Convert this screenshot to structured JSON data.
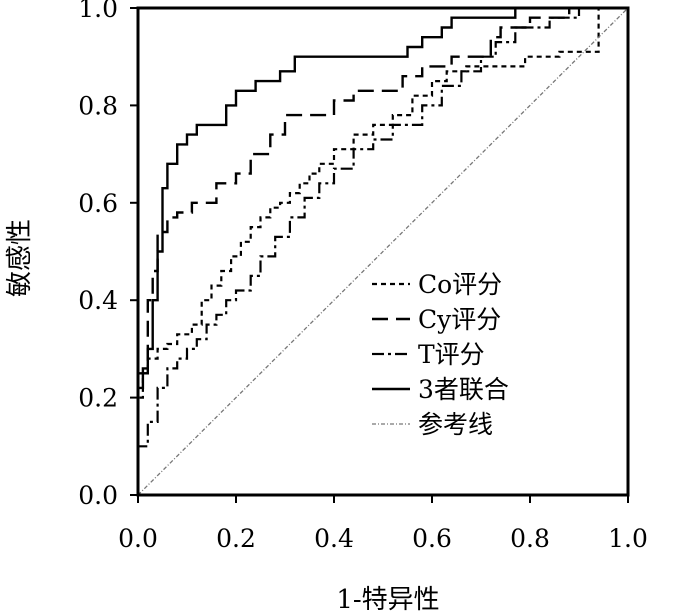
{
  "chart_data": {
    "type": "line",
    "title": "",
    "xlabel": "1-特异性",
    "ylabel": "敏感性",
    "xlim": [
      0,
      1
    ],
    "ylim": [
      0,
      1
    ],
    "x_ticks": [
      "0.0",
      "0.2",
      "0.4",
      "0.6",
      "0.8",
      "1.0"
    ],
    "y_ticks": [
      "0.0",
      "0.2",
      "0.4",
      "0.6",
      "0.8",
      "1.0"
    ],
    "grid": false,
    "legend_position": "bottom-right",
    "series": [
      {
        "name": "Co评分",
        "style": "dotted-dash",
        "x": [
          0,
          0,
          0.01,
          0.01,
          0.02,
          0.02,
          0.04,
          0.04,
          0.06,
          0.06,
          0.08,
          0.08,
          0.11,
          0.11,
          0.13,
          0.13,
          0.15,
          0.15,
          0.17,
          0.17,
          0.19,
          0.19,
          0.21,
          0.21,
          0.23,
          0.23,
          0.25,
          0.25,
          0.27,
          0.27,
          0.29,
          0.29,
          0.31,
          0.31,
          0.33,
          0.33,
          0.35,
          0.35,
          0.37,
          0.37,
          0.4,
          0.4,
          0.44,
          0.44,
          0.48,
          0.48,
          0.52,
          0.52,
          0.56,
          0.56,
          0.6,
          0.6,
          0.63,
          0.63,
          0.67,
          0.67,
          0.71,
          0.71,
          0.79,
          0.79,
          0.86,
          0.86,
          0.94,
          0.94,
          1
        ],
        "y": [
          0,
          0.2,
          0.2,
          0.25,
          0.25,
          0.28,
          0.28,
          0.3,
          0.3,
          0.31,
          0.31,
          0.33,
          0.33,
          0.35,
          0.35,
          0.4,
          0.4,
          0.43,
          0.43,
          0.46,
          0.46,
          0.49,
          0.49,
          0.52,
          0.52,
          0.55,
          0.55,
          0.57,
          0.57,
          0.59,
          0.59,
          0.6,
          0.6,
          0.62,
          0.62,
          0.64,
          0.64,
          0.66,
          0.66,
          0.68,
          0.68,
          0.71,
          0.71,
          0.74,
          0.74,
          0.76,
          0.76,
          0.78,
          0.78,
          0.82,
          0.82,
          0.85,
          0.85,
          0.87,
          0.87,
          0.88,
          0.88,
          0.88,
          0.88,
          0.9,
          0.9,
          0.91,
          0.91,
          1,
          1
        ]
      },
      {
        "name": "Cy评分",
        "style": "dashed",
        "x": [
          0,
          0,
          0.02,
          0.02,
          0.03,
          0.03,
          0.04,
          0.04,
          0.06,
          0.06,
          0.08,
          0.08,
          0.11,
          0.11,
          0.16,
          0.16,
          0.2,
          0.2,
          0.23,
          0.23,
          0.27,
          0.27,
          0.3,
          0.3,
          0.4,
          0.4,
          0.44,
          0.44,
          0.54,
          0.54,
          0.58,
          0.58,
          0.64,
          0.64,
          0.72,
          0.72,
          0.74,
          0.74,
          0.8,
          0.8,
          0.88,
          0.88,
          0.95,
          0.95,
          1
        ],
        "y": [
          0,
          0.25,
          0.25,
          0.4,
          0.4,
          0.46,
          0.46,
          0.54,
          0.54,
          0.57,
          0.57,
          0.58,
          0.58,
          0.6,
          0.6,
          0.64,
          0.64,
          0.66,
          0.66,
          0.7,
          0.7,
          0.74,
          0.74,
          0.78,
          0.78,
          0.81,
          0.81,
          0.83,
          0.83,
          0.86,
          0.86,
          0.88,
          0.88,
          0.9,
          0.9,
          0.94,
          0.94,
          0.96,
          0.96,
          0.98,
          0.98,
          1,
          1,
          1,
          1
        ]
      },
      {
        "name": "T评分",
        "style": "dash-dot",
        "x": [
          0,
          0,
          0.02,
          0.02,
          0.04,
          0.04,
          0.06,
          0.06,
          0.08,
          0.08,
          0.1,
          0.1,
          0.12,
          0.12,
          0.14,
          0.14,
          0.16,
          0.16,
          0.18,
          0.18,
          0.2,
          0.2,
          0.23,
          0.23,
          0.25,
          0.25,
          0.28,
          0.28,
          0.31,
          0.31,
          0.34,
          0.34,
          0.37,
          0.37,
          0.4,
          0.4,
          0.44,
          0.44,
          0.48,
          0.48,
          0.52,
          0.52,
          0.58,
          0.58,
          0.62,
          0.62,
          0.66,
          0.66,
          0.7,
          0.7,
          0.73,
          0.73,
          0.77,
          0.77,
          0.84,
          0.84,
          0.9,
          0.9,
          0.97,
          0.97,
          1
        ],
        "y": [
          0,
          0.1,
          0.1,
          0.15,
          0.15,
          0.22,
          0.22,
          0.26,
          0.26,
          0.28,
          0.28,
          0.3,
          0.3,
          0.32,
          0.32,
          0.35,
          0.35,
          0.37,
          0.37,
          0.4,
          0.4,
          0.42,
          0.42,
          0.45,
          0.45,
          0.49,
          0.49,
          0.53,
          0.53,
          0.57,
          0.57,
          0.61,
          0.61,
          0.64,
          0.64,
          0.67,
          0.67,
          0.71,
          0.71,
          0.73,
          0.73,
          0.76,
          0.76,
          0.8,
          0.8,
          0.84,
          0.84,
          0.87,
          0.87,
          0.9,
          0.9,
          0.93,
          0.93,
          0.96,
          0.96,
          0.98,
          0.98,
          1,
          1,
          1,
          1
        ]
      },
      {
        "name": "3者联合",
        "style": "solid",
        "x": [
          0,
          0,
          0.01,
          0.01,
          0.02,
          0.02,
          0.03,
          0.03,
          0.04,
          0.04,
          0.05,
          0.05,
          0.06,
          0.06,
          0.08,
          0.08,
          0.1,
          0.1,
          0.12,
          0.12,
          0.18,
          0.18,
          0.2,
          0.2,
          0.24,
          0.24,
          0.29,
          0.29,
          0.32,
          0.32,
          0.38,
          0.38,
          0.44,
          0.44,
          0.55,
          0.55,
          0.58,
          0.58,
          0.62,
          0.62,
          0.64,
          0.64,
          0.77,
          0.77,
          0.96,
          0.96,
          1
        ],
        "y": [
          0,
          0.22,
          0.22,
          0.26,
          0.26,
          0.3,
          0.3,
          0.4,
          0.4,
          0.5,
          0.5,
          0.63,
          0.63,
          0.68,
          0.68,
          0.72,
          0.72,
          0.74,
          0.74,
          0.76,
          0.76,
          0.8,
          0.8,
          0.83,
          0.83,
          0.85,
          0.85,
          0.87,
          0.87,
          0.9,
          0.9,
          0.9,
          0.9,
          0.9,
          0.9,
          0.92,
          0.92,
          0.94,
          0.94,
          0.96,
          0.96,
          0.98,
          0.98,
          1,
          1,
          1,
          1
        ]
      },
      {
        "name": "参考线",
        "style": "reference",
        "x": [
          0,
          1
        ],
        "y": [
          0,
          1
        ]
      }
    ]
  }
}
